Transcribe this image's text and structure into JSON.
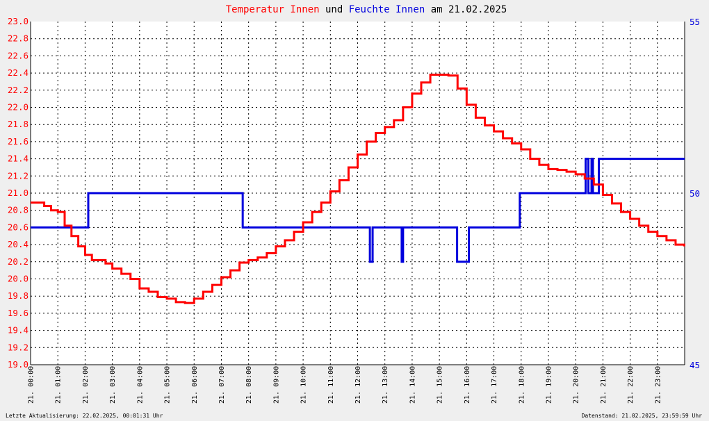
{
  "title": {
    "part1": "Temperatur Innen",
    "part2": " und ",
    "part3": "Feuchte Innen",
    "part4": " am 21.02.2025"
  },
  "footer": {
    "left": "Letzte Aktualisierung: 22.02.2025, 00:01:31 Uhr",
    "right": "Datenstand: 21.02.2025, 23:59:59 Uhr"
  },
  "colors": {
    "temperature": "#ff0000",
    "humidity": "#0000dd",
    "grid": "#000000",
    "plot_background": "#ffffff",
    "page_background": "#efefef"
  },
  "chart_data": {
    "type": "line",
    "title": "Temperatur Innen und Feuchte Innen am 21.02.2025",
    "grid": true,
    "x_range": [
      "00:00",
      "24:00"
    ],
    "x_ticks": [
      "21. 00:00",
      "21. 01:00",
      "21. 02:00",
      "21. 03:00",
      "21. 04:00",
      "21. 05:00",
      "21. 06:00",
      "21. 07:00",
      "21. 08:00",
      "21. 09:00",
      "21. 10:00",
      "21. 11:00",
      "21. 12:00",
      "21. 13:00",
      "21. 14:00",
      "21. 15:00",
      "21. 16:00",
      "21. 17:00",
      "21. 18:00",
      "21. 19:00",
      "21. 20:00",
      "21. 21:00",
      "21. 22:00",
      "21. 23:00"
    ],
    "y_left": {
      "range": [
        19.0,
        23.0
      ],
      "ticks": [
        "19.0",
        "19.2",
        "19.4",
        "19.6",
        "19.8",
        "20.0",
        "20.2",
        "20.4",
        "20.6",
        "20.8",
        "21.0",
        "21.2",
        "21.4",
        "21.6",
        "21.8",
        "22.0",
        "22.2",
        "22.4",
        "22.6",
        "22.8",
        "23.0"
      ]
    },
    "y_right": {
      "range": [
        45,
        55
      ],
      "ticks": [
        "45",
        "50",
        "55"
      ]
    },
    "series": [
      {
        "name": "Temperatur Innen",
        "axis": "left",
        "x": [
          "00:00",
          "00:15",
          "00:30",
          "00:45",
          "01:00",
          "01:15",
          "01:30",
          "01:45",
          "02:00",
          "02:15",
          "02:30",
          "02:45",
          "03:00",
          "03:20",
          "03:40",
          "04:00",
          "04:20",
          "04:40",
          "05:00",
          "05:20",
          "05:40",
          "06:00",
          "06:20",
          "06:40",
          "07:00",
          "07:20",
          "07:40",
          "08:00",
          "08:20",
          "08:40",
          "09:00",
          "09:20",
          "09:40",
          "10:00",
          "10:20",
          "10:40",
          "11:00",
          "11:20",
          "11:40",
          "12:00",
          "12:20",
          "12:40",
          "13:00",
          "13:20",
          "13:40",
          "14:00",
          "14:20",
          "14:40",
          "15:00",
          "15:20",
          "15:40",
          "16:00",
          "16:20",
          "16:40",
          "17:00",
          "17:20",
          "17:40",
          "18:00",
          "18:20",
          "18:40",
          "19:00",
          "19:20",
          "19:40",
          "20:00",
          "20:20",
          "20:40",
          "21:00",
          "21:20",
          "21:40",
          "22:00",
          "22:20",
          "22:40",
          "23:00",
          "23:20",
          "23:40",
          "23:59"
        ],
        "values": [
          20.89,
          20.89,
          20.85,
          20.8,
          20.78,
          20.62,
          20.5,
          20.38,
          20.28,
          20.22,
          20.22,
          20.18,
          20.12,
          20.06,
          20.0,
          19.89,
          19.85,
          19.79,
          19.77,
          19.73,
          19.72,
          19.77,
          19.85,
          19.93,
          20.02,
          20.1,
          20.19,
          20.22,
          20.25,
          20.3,
          20.38,
          20.45,
          20.55,
          20.66,
          20.78,
          20.89,
          21.02,
          21.15,
          21.3,
          21.45,
          21.6,
          21.7,
          21.77,
          21.85,
          22.0,
          22.16,
          22.29,
          22.38,
          22.38,
          22.37,
          22.22,
          22.03,
          21.88,
          21.79,
          21.72,
          21.64,
          21.58,
          21.51,
          21.4,
          21.33,
          21.28,
          21.27,
          21.25,
          21.22,
          21.17,
          21.1,
          20.98,
          20.88,
          20.78,
          20.7,
          20.62,
          20.55,
          20.5,
          20.45,
          20.4,
          20.38
        ]
      },
      {
        "name": "Feuchte Innen",
        "axis": "right",
        "x": [
          "00:00",
          "02:07",
          "02:07",
          "07:47",
          "07:47",
          "12:27",
          "12:27",
          "12:33",
          "12:33",
          "13:37",
          "13:37",
          "13:40",
          "13:40",
          "15:39",
          "15:39",
          "16:05",
          "16:05",
          "17:57",
          "17:57",
          "20:22",
          "20:22",
          "20:28",
          "20:28",
          "20:35",
          "20:35",
          "20:38",
          "20:38",
          "20:51",
          "20:51",
          "20:58",
          "20:58",
          "24:00"
        ],
        "values": [
          49,
          49,
          50,
          50,
          49,
          49,
          48,
          48,
          49,
          49,
          48,
          48,
          49,
          49,
          48,
          48,
          49,
          49,
          50,
          50,
          51,
          51,
          50,
          50,
          51,
          51,
          50,
          50,
          51,
          51,
          51,
          51
        ]
      }
    ]
  }
}
